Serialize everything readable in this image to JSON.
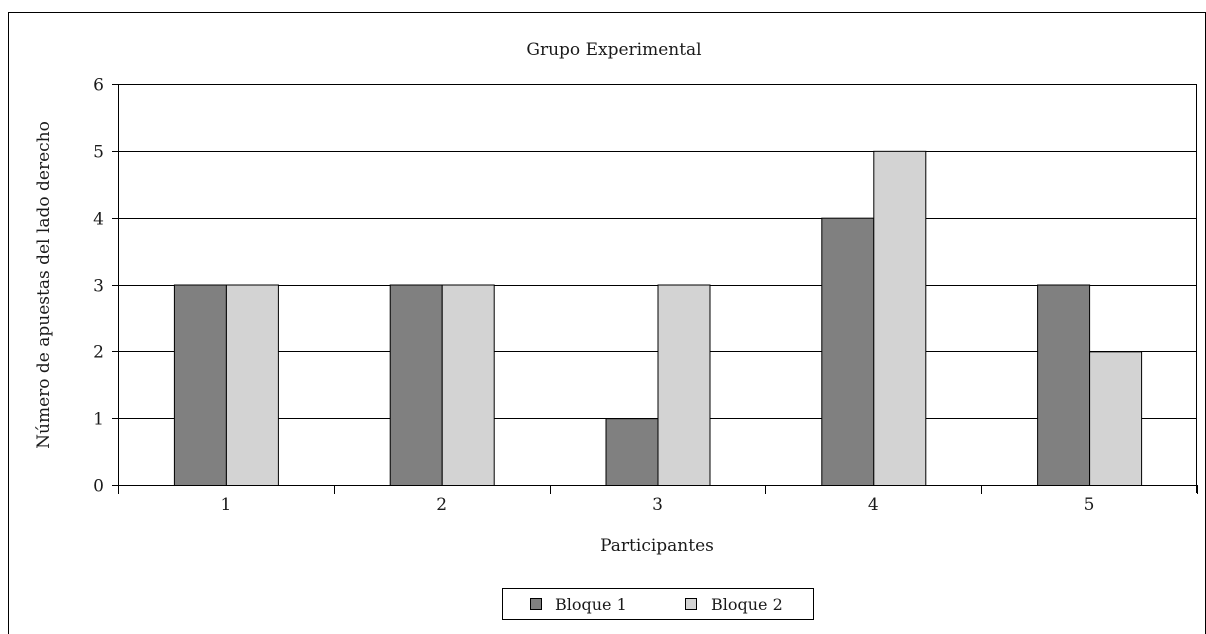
{
  "chart_data": {
    "type": "bar",
    "title": "Grupo Experimental",
    "xlabel": "Participantes",
    "ylabel": "Número de apuestas del lado derecho",
    "categories": [
      "1",
      "2",
      "3",
      "4",
      "5"
    ],
    "ylim": [
      0,
      6
    ],
    "yticks": [
      "0",
      "1",
      "2",
      "3",
      "4",
      "5",
      "6"
    ],
    "grid": true,
    "legend_position": "bottom",
    "series": [
      {
        "name": "Bloque 1",
        "values": [
          3,
          3,
          1,
          4,
          3
        ],
        "color": "#808080"
      },
      {
        "name": "Bloque 2",
        "values": [
          3,
          3,
          3,
          5,
          2
        ],
        "color": "#d3d3d3"
      }
    ]
  }
}
